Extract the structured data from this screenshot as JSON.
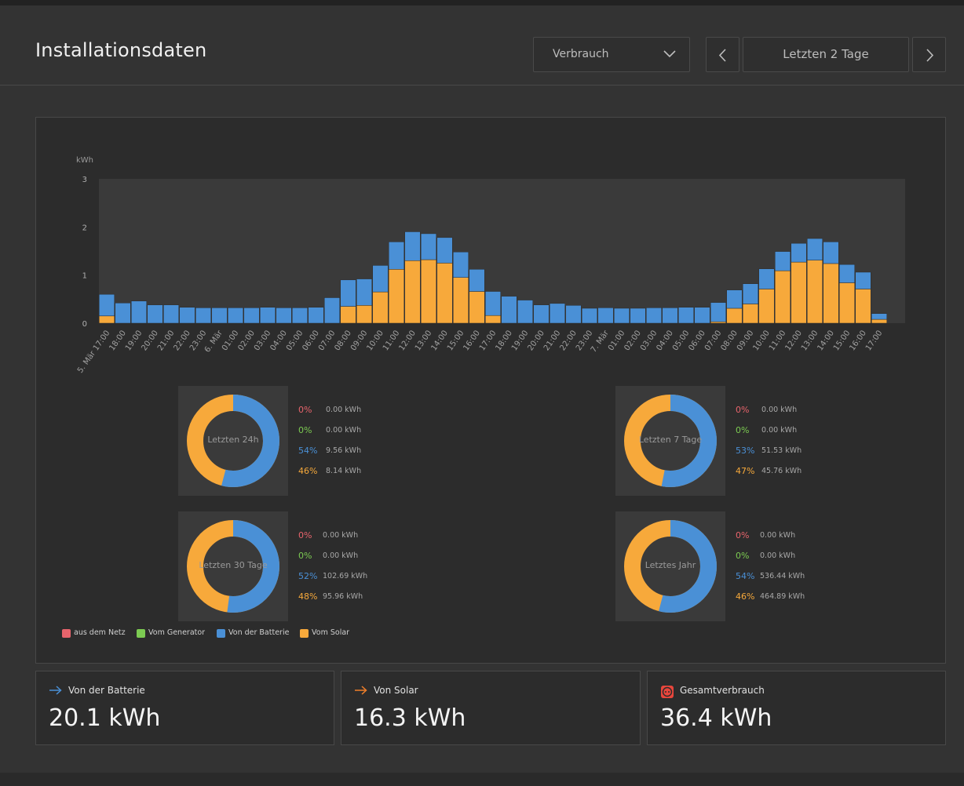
{
  "page": {
    "title": "Installationsdaten"
  },
  "controls": {
    "type_select": "Verbrauch",
    "range_label": "Letzten 2 Tage"
  },
  "colors": {
    "grid": "#e8646c",
    "generator": "#7ccb52",
    "battery": "#4a90d6",
    "solar": "#f7a93b"
  },
  "chart_data": {
    "type": "bar",
    "stacked": true,
    "ylabel": "kWh",
    "ylim": [
      0,
      3
    ],
    "yticks": [
      0,
      1,
      2,
      3
    ],
    "categories": [
      "5. Mär 17:00",
      "18:00",
      "19:00",
      "20:00",
      "21:00",
      "22:00",
      "23:00",
      "6. Mär",
      "01:00",
      "02:00",
      "03:00",
      "04:00",
      "05:00",
      "06:00",
      "07:00",
      "08:00",
      "09:00",
      "10:00",
      "11:00",
      "12:00",
      "13:00",
      "14:00",
      "15:00",
      "16:00",
      "17:00",
      "18:00",
      "19:00",
      "20:00",
      "21:00",
      "22:00",
      "23:00",
      "7. Mär",
      "01:00",
      "02:00",
      "03:00",
      "04:00",
      "05:00",
      "06:00",
      "07:00",
      "08:00",
      "09:00",
      "10:00",
      "11:00",
      "12:00",
      "13:00",
      "14:00",
      "15:00",
      "16:00",
      "17:00"
    ],
    "series": [
      {
        "name": "Vom Solar",
        "color": "#f7a93b",
        "values": [
          0.15,
          0,
          0,
          0,
          0,
          0,
          0,
          0,
          0,
          0,
          0,
          0,
          0,
          0,
          0,
          0.35,
          0.37,
          0.65,
          1.12,
          1.3,
          1.32,
          1.25,
          0.95,
          0.66,
          0.16,
          0,
          0,
          0,
          0,
          0,
          0,
          0,
          0,
          0,
          0,
          0,
          0,
          0,
          0.03,
          0.31,
          0.4,
          0.71,
          1.09,
          1.27,
          1.31,
          1.24,
          0.84,
          0.71,
          0.08
        ]
      },
      {
        "name": "Von der Batterie",
        "color": "#4a90d6",
        "values": [
          0.45,
          0.42,
          0.46,
          0.38,
          0.38,
          0.33,
          0.32,
          0.32,
          0.32,
          0.32,
          0.33,
          0.32,
          0.32,
          0.33,
          0.53,
          0.55,
          0.55,
          0.55,
          0.57,
          0.6,
          0.54,
          0.53,
          0.53,
          0.46,
          0.5,
          0.56,
          0.48,
          0.38,
          0.41,
          0.37,
          0.31,
          0.32,
          0.31,
          0.31,
          0.32,
          0.32,
          0.33,
          0.33,
          0.4,
          0.38,
          0.42,
          0.42,
          0.4,
          0.39,
          0.45,
          0.45,
          0.38,
          0.35,
          0.12
        ]
      }
    ]
  },
  "summaries": [
    {
      "label": "Letzten 24h",
      "rows": [
        {
          "pct": "0%",
          "val": "0.00 kWh",
          "color": "#e8646c"
        },
        {
          "pct": "0%",
          "val": "0.00 kWh",
          "color": "#7ccb52"
        },
        {
          "pct": "54%",
          "val": "9.56 kWh",
          "color": "#4a90d6"
        },
        {
          "pct": "46%",
          "val": "8.14 kWh",
          "color": "#f7a93b"
        }
      ],
      "battery_fraction": 0.54
    },
    {
      "label": "Letzten 7 Tage",
      "rows": [
        {
          "pct": "0%",
          "val": "0.00 kWh",
          "color": "#e8646c"
        },
        {
          "pct": "0%",
          "val": "0.00 kWh",
          "color": "#7ccb52"
        },
        {
          "pct": "53%",
          "val": "51.53 kWh",
          "color": "#4a90d6"
        },
        {
          "pct": "47%",
          "val": "45.76 kWh",
          "color": "#f7a93b"
        }
      ],
      "battery_fraction": 0.53
    },
    {
      "label": "Letzten 30 Tage",
      "rows": [
        {
          "pct": "0%",
          "val": "0.00 kWh",
          "color": "#e8646c"
        },
        {
          "pct": "0%",
          "val": "0.00 kWh",
          "color": "#7ccb52"
        },
        {
          "pct": "52%",
          "val": "102.69 kWh",
          "color": "#4a90d6"
        },
        {
          "pct": "48%",
          "val": "95.96 kWh",
          "color": "#f7a93b"
        }
      ],
      "battery_fraction": 0.52
    },
    {
      "label": "Letztes Jahr",
      "rows": [
        {
          "pct": "0%",
          "val": "0.00 kWh",
          "color": "#e8646c"
        },
        {
          "pct": "0%",
          "val": "0.00 kWh",
          "color": "#7ccb52"
        },
        {
          "pct": "54%",
          "val": "536.44 kWh",
          "color": "#4a90d6"
        },
        {
          "pct": "46%",
          "val": "464.89 kWh",
          "color": "#f7a93b"
        }
      ],
      "battery_fraction": 0.54
    }
  ],
  "legend": [
    {
      "label": "aus dem Netz",
      "color": "#e8646c"
    },
    {
      "label": "Vom Generator",
      "color": "#7ccb52"
    },
    {
      "label": "Von der Batterie",
      "color": "#4a90d6"
    },
    {
      "label": "Vom Solar",
      "color": "#f7a93b"
    }
  ],
  "cards": [
    {
      "label": "Von der Batterie",
      "value": "20.1 kWh",
      "icon": "arrow-right-icon",
      "icon_color": "#4a90d6"
    },
    {
      "label": "Von Solar",
      "value": "16.3 kWh",
      "icon": "arrow-right-icon",
      "icon_color": "#f07f2a"
    },
    {
      "label": "Gesamtverbrauch",
      "value": "36.4 kWh",
      "icon": "power-outlet-icon",
      "icon_color": "#e8463c"
    }
  ]
}
